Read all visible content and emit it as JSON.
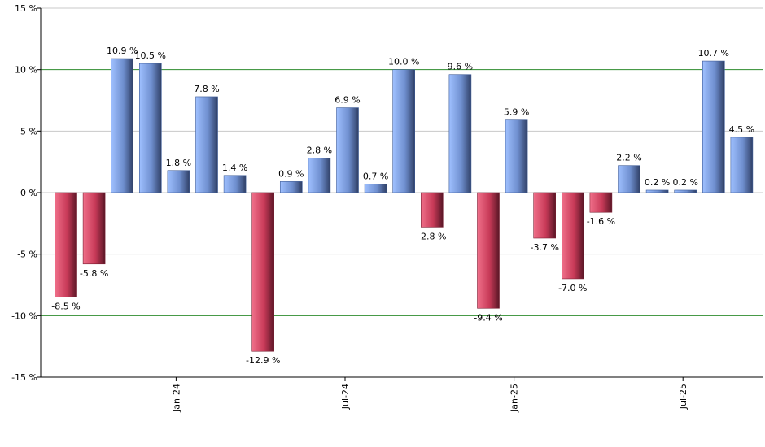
{
  "chart_data": {
    "type": "bar",
    "title": "",
    "xlabel": "",
    "ylabel": "",
    "ylim": [
      -15,
      15
    ],
    "y_ticks": [
      15,
      10,
      5,
      0,
      -5,
      -10,
      -15
    ],
    "y_tick_labels": [
      "15 %",
      "10 %",
      "5 %",
      "0 %",
      "-5 %",
      "-10 %",
      "-15 %"
    ],
    "highlight_gridlines": [
      10,
      -10
    ],
    "grid": true,
    "x_tick_labels": [
      {
        "label": "Jan-24",
        "index": 4
      },
      {
        "label": "Jul-24",
        "index": 10
      },
      {
        "label": "Jan-25",
        "index": 16
      },
      {
        "label": "Jul-25",
        "index": 22
      }
    ],
    "values": [
      -8.5,
      -5.8,
      10.9,
      10.5,
      1.8,
      7.8,
      1.4,
      -12.9,
      0.9,
      2.8,
      6.9,
      0.7,
      10.0,
      -2.8,
      9.6,
      -9.4,
      5.9,
      -3.7,
      -7.0,
      -1.6,
      2.2,
      0.2,
      0.2,
      10.7,
      4.5
    ],
    "labels": [
      "-8.5 %",
      "-5.8 %",
      "10.9 %",
      "10.5 %",
      "1.8 %",
      "7.8 %",
      "1.4 %",
      "-12.9 %",
      "0.9 %",
      "2.8 %",
      "6.9 %",
      "0.7 %",
      "10.0 %",
      "-2.8 %",
      "9.6 %",
      "-9.4 %",
      "5.9 %",
      "-3.7 %",
      "-7.0 %",
      "-1.6 %",
      "2.2 %",
      "0.2 %",
      "0.2 %",
      "10.7 %",
      "4.5 %"
    ],
    "colors": {
      "positive": "#7a9fe6",
      "negative": "#d0405e",
      "grid": "#c8c8c8",
      "highlight_grid": "#2e8b2e",
      "axis": "#000000"
    }
  }
}
